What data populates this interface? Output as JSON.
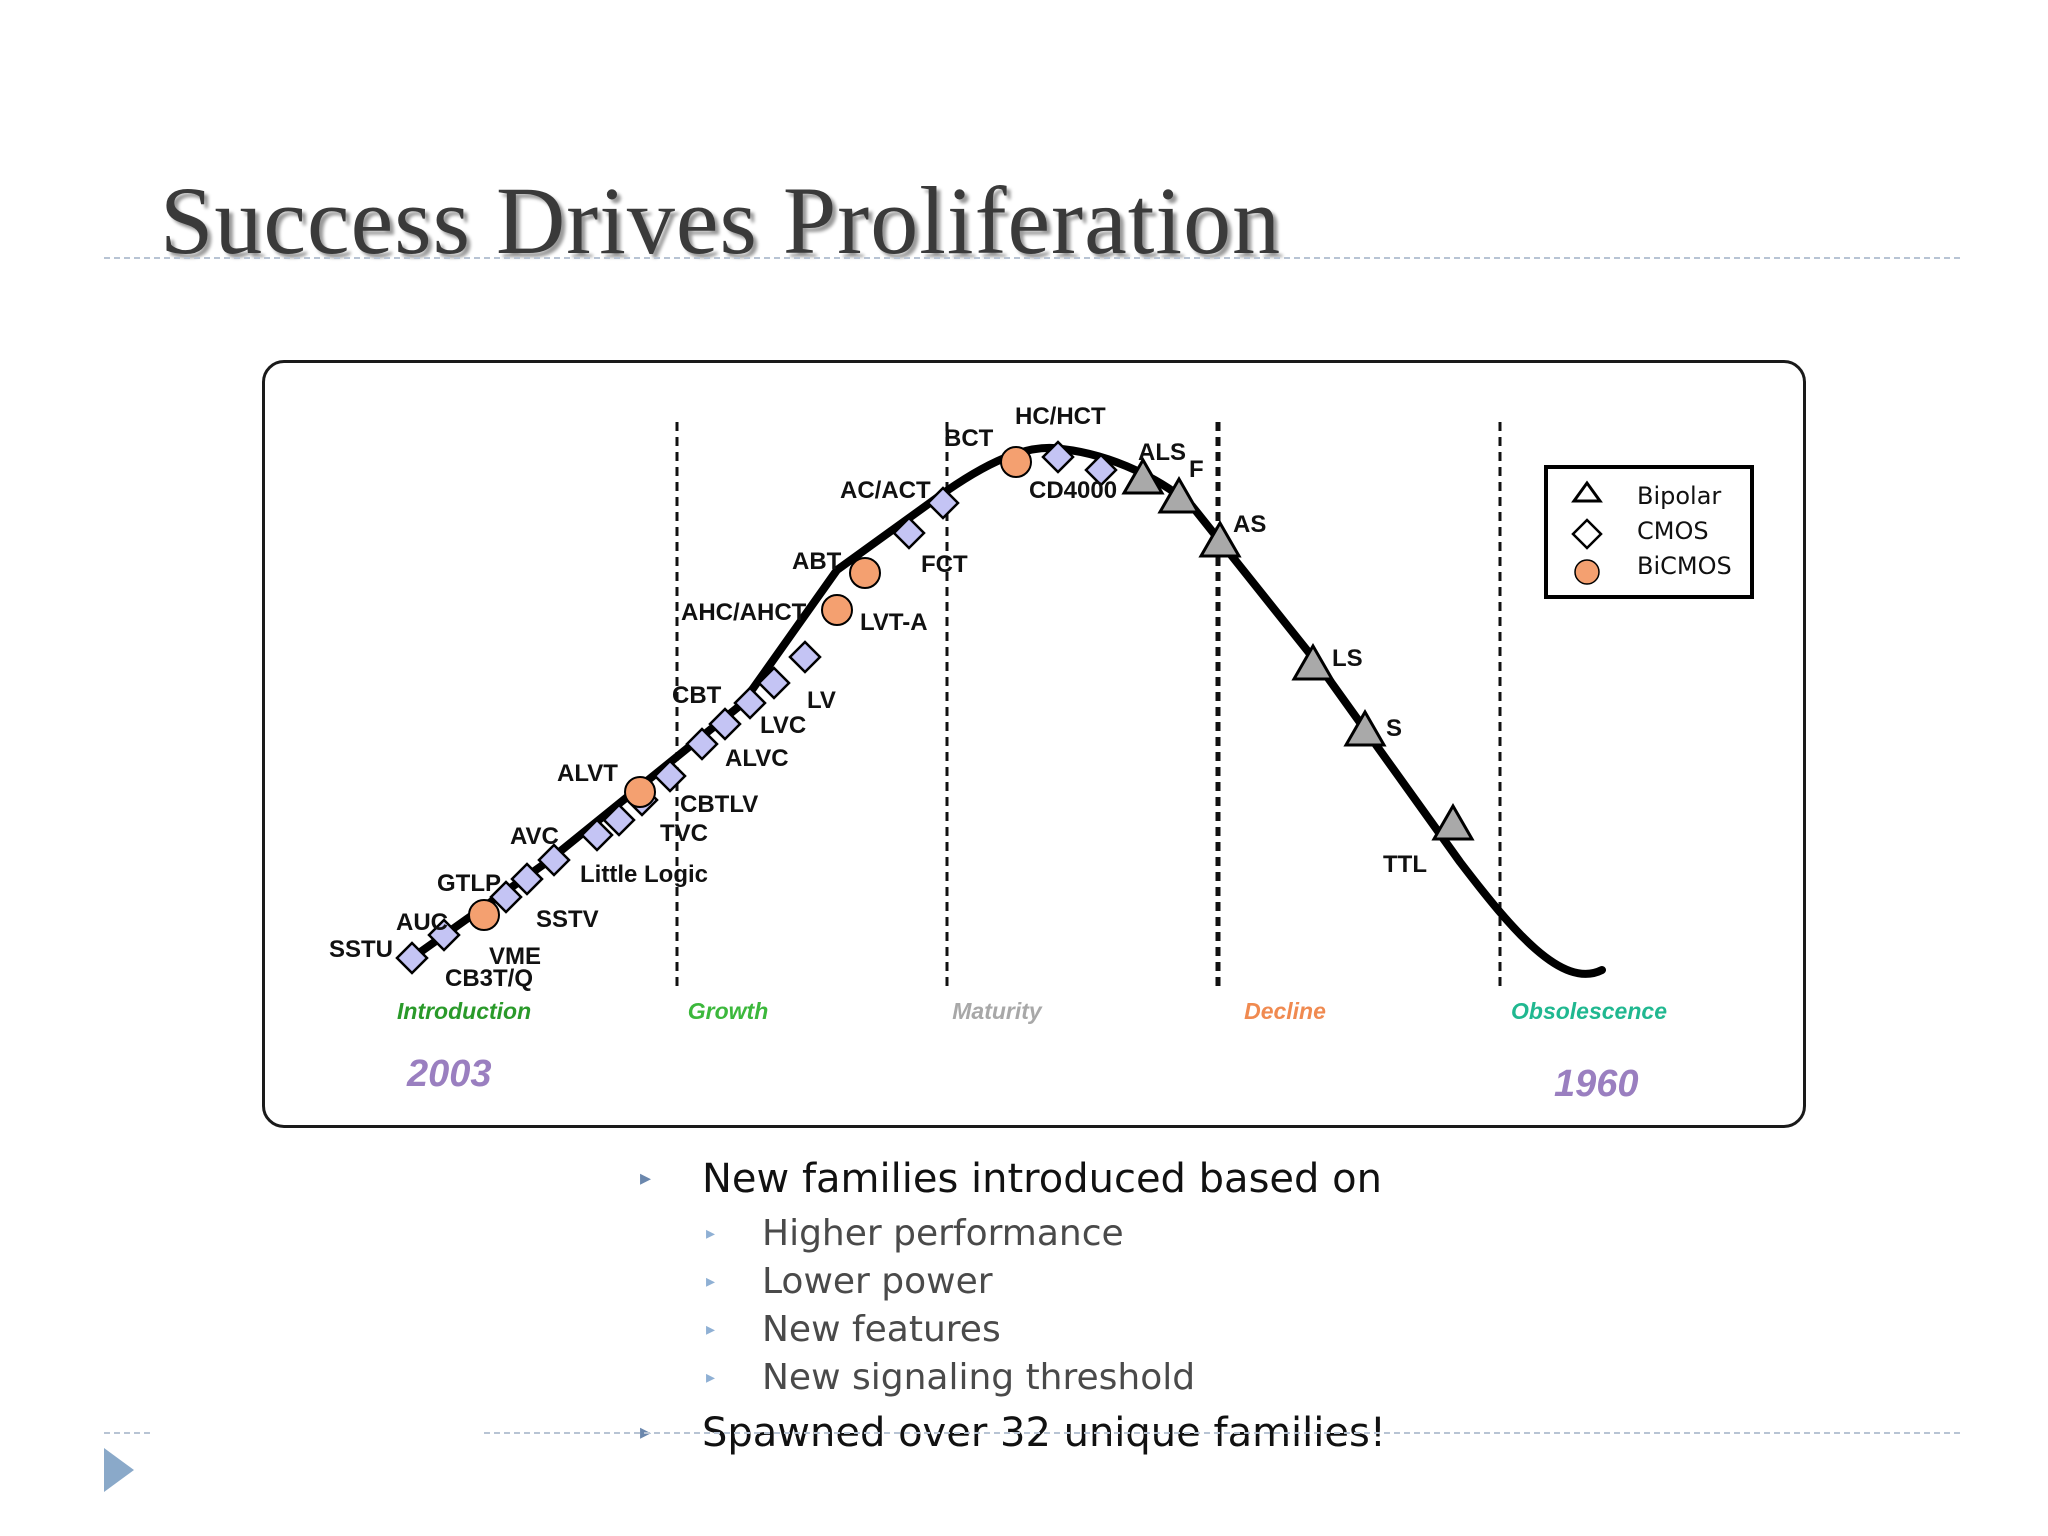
{
  "slide": {
    "title": "Success Drives Proliferation"
  },
  "legend": [
    {
      "label": "Bipolar",
      "icon": "triangle-icon"
    },
    {
      "label": "CMOS",
      "icon": "diamond-icon"
    },
    {
      "label": "BiCMOS",
      "icon": "circle-icon"
    }
  ],
  "phases": [
    {
      "label": "Introduction",
      "color": "#2a9a2a"
    },
    {
      "label": "Growth",
      "color": "#3cb83c"
    },
    {
      "label": "Maturity",
      "color": "#a8a8a8"
    },
    {
      "label": "Decline",
      "color": "#f08a50"
    },
    {
      "label": "Obsolescence",
      "color": "#20b890"
    }
  ],
  "years": {
    "start": "2003",
    "end": "1960",
    "color": "#9a7fc0"
  },
  "colors": {
    "bipolar": "#a9a9a9",
    "cmos": "#c4c4f4",
    "bicmos": "#f4a070"
  },
  "families": [
    {
      "label": "SSTU",
      "type": "cmos"
    },
    {
      "label": "CB3T/Q",
      "type": "cmos"
    },
    {
      "label": "AUC",
      "type": "bicmos"
    },
    {
      "label": "VME",
      "type": "cmos"
    },
    {
      "label": "GTLP",
      "type": "cmos"
    },
    {
      "label": "SSTV",
      "type": "cmos"
    },
    {
      "label": "AVC",
      "type": "cmos"
    },
    {
      "label": "Little Logic",
      "type": "cmos"
    },
    {
      "label": "TVC",
      "type": "cmos"
    },
    {
      "label": "ALVT",
      "type": "bicmos"
    },
    {
      "label": "CBTLV",
      "type": "cmos"
    },
    {
      "label": "ALVC",
      "type": "cmos"
    },
    {
      "label": "LVC",
      "type": "cmos"
    },
    {
      "label": "CBT",
      "type": "cmos"
    },
    {
      "label": "LV",
      "type": "cmos"
    },
    {
      "label": "AHC/AHCT",
      "type": "cmos"
    },
    {
      "label": "LVT-A",
      "type": "bicmos"
    },
    {
      "label": "ABT",
      "type": "bicmos"
    },
    {
      "label": "FCT",
      "type": "cmos"
    },
    {
      "label": "AC/ACT",
      "type": "cmos"
    },
    {
      "label": "BCT",
      "type": "bicmos"
    },
    {
      "label": "HC/HCT",
      "type": "cmos"
    },
    {
      "label": "CD4000",
      "type": "cmos"
    },
    {
      "label": "ALS",
      "type": "bipolar"
    },
    {
      "label": "F",
      "type": "bipolar"
    },
    {
      "label": "AS",
      "type": "bipolar"
    },
    {
      "label": "LS",
      "type": "bipolar"
    },
    {
      "label": "S",
      "type": "bipolar"
    },
    {
      "label": "TTL",
      "type": "bipolar"
    }
  ],
  "bullets": [
    {
      "text": "New families introduced based on",
      "sub": [
        "Higher performance",
        "Lower power",
        "New features",
        "New signaling threshold"
      ]
    },
    {
      "text": "Spawned over 32 unique families!",
      "sub": []
    }
  ]
}
